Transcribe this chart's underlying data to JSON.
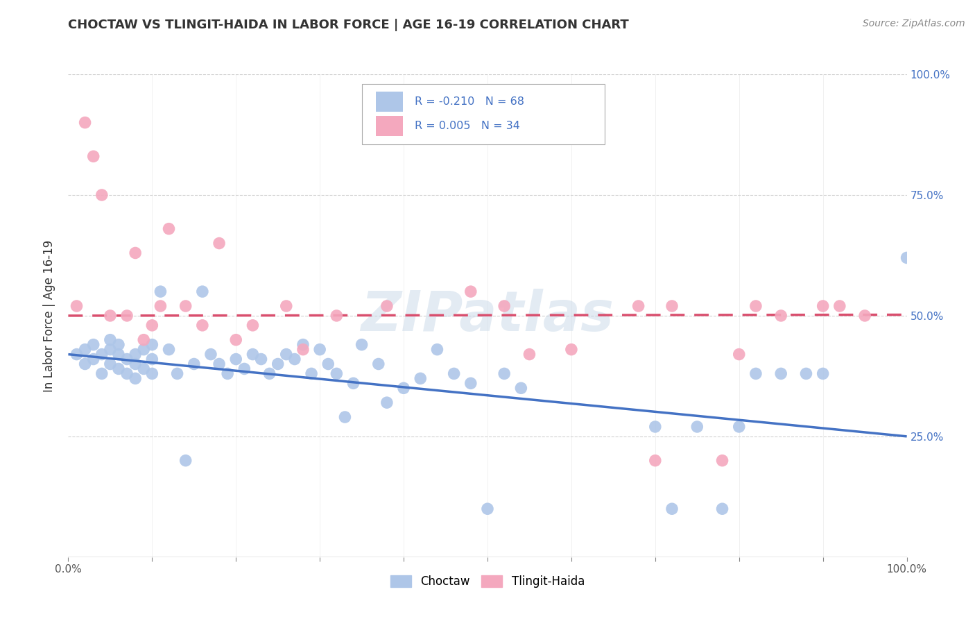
{
  "title": "CHOCTAW VS TLINGIT-HAIDA IN LABOR FORCE | AGE 16-19 CORRELATION CHART",
  "source": "Source: ZipAtlas.com",
  "ylabel": "In Labor Force | Age 16-19",
  "xlim": [
    0,
    1
  ],
  "ylim": [
    0,
    1
  ],
  "choctaw_R": -0.21,
  "choctaw_N": 68,
  "tlingit_R": 0.005,
  "tlingit_N": 34,
  "choctaw_color": "#aec6e8",
  "tlingit_color": "#f4a8be",
  "choctaw_line_color": "#4472c4",
  "tlingit_line_color": "#d94f6e",
  "background_color": "#ffffff",
  "grid_color": "#d0d0d0",
  "choctaw_x": [
    0.01,
    0.02,
    0.02,
    0.03,
    0.03,
    0.04,
    0.04,
    0.05,
    0.05,
    0.05,
    0.06,
    0.06,
    0.06,
    0.07,
    0.07,
    0.08,
    0.08,
    0.08,
    0.09,
    0.09,
    0.1,
    0.1,
    0.1,
    0.11,
    0.12,
    0.13,
    0.14,
    0.15,
    0.16,
    0.17,
    0.18,
    0.19,
    0.2,
    0.21,
    0.22,
    0.23,
    0.24,
    0.25,
    0.26,
    0.27,
    0.28,
    0.29,
    0.3,
    0.31,
    0.32,
    0.33,
    0.34,
    0.35,
    0.37,
    0.38,
    0.4,
    0.42,
    0.44,
    0.46,
    0.48,
    0.5,
    0.52,
    0.54,
    0.7,
    0.72,
    0.75,
    0.78,
    0.8,
    0.82,
    0.85,
    0.88,
    0.9,
    1.0
  ],
  "choctaw_y": [
    0.42,
    0.43,
    0.4,
    0.44,
    0.41,
    0.42,
    0.38,
    0.43,
    0.4,
    0.45,
    0.39,
    0.42,
    0.44,
    0.41,
    0.38,
    0.42,
    0.4,
    0.37,
    0.43,
    0.39,
    0.41,
    0.38,
    0.44,
    0.55,
    0.43,
    0.38,
    0.2,
    0.4,
    0.55,
    0.42,
    0.4,
    0.38,
    0.41,
    0.39,
    0.42,
    0.41,
    0.38,
    0.4,
    0.42,
    0.41,
    0.44,
    0.38,
    0.43,
    0.4,
    0.38,
    0.29,
    0.36,
    0.44,
    0.4,
    0.32,
    0.35,
    0.37,
    0.43,
    0.38,
    0.36,
    0.1,
    0.38,
    0.35,
    0.27,
    0.1,
    0.27,
    0.1,
    0.27,
    0.38,
    0.38,
    0.38,
    0.38,
    0.62
  ],
  "tlingit_x": [
    0.01,
    0.02,
    0.03,
    0.04,
    0.05,
    0.07,
    0.08,
    0.09,
    0.1,
    0.11,
    0.12,
    0.14,
    0.16,
    0.18,
    0.2,
    0.22,
    0.26,
    0.28,
    0.32,
    0.38,
    0.48,
    0.52,
    0.55,
    0.6,
    0.68,
    0.7,
    0.72,
    0.78,
    0.8,
    0.82,
    0.85,
    0.9,
    0.92,
    0.95
  ],
  "tlingit_y": [
    0.52,
    0.9,
    0.83,
    0.75,
    0.5,
    0.5,
    0.63,
    0.45,
    0.48,
    0.52,
    0.68,
    0.52,
    0.48,
    0.65,
    0.45,
    0.48,
    0.52,
    0.43,
    0.5,
    0.52,
    0.55,
    0.52,
    0.42,
    0.43,
    0.52,
    0.2,
    0.52,
    0.2,
    0.42,
    0.52,
    0.5,
    0.52,
    0.52,
    0.5
  ]
}
